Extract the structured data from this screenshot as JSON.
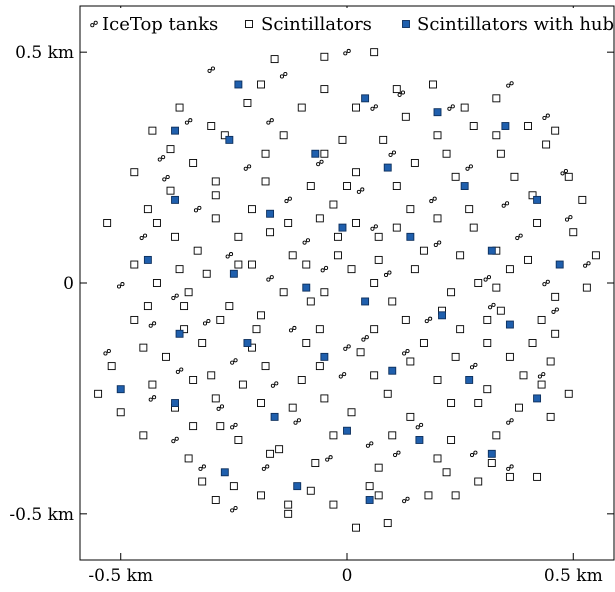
{
  "chart_data": {
    "type": "scatter",
    "title": "",
    "xlabel": "",
    "ylabel": "",
    "xlim": [
      -0.59,
      0.59
    ],
    "ylim": [
      -0.6,
      0.6
    ],
    "x_ticks": [
      {
        "value": -0.5,
        "label": "-0.5 km"
      },
      {
        "value": 0,
        "label": "0"
      },
      {
        "value": 0.5,
        "label": "0.5 km"
      }
    ],
    "y_ticks": [
      {
        "value": 0.5,
        "label": "0.5 km"
      },
      {
        "value": 0,
        "label": "0"
      },
      {
        "value": -0.5,
        "label": "-0.5 km"
      }
    ],
    "grid": false,
    "legend_position": "top",
    "colors": {
      "hub": "#1f5fad",
      "edge": "#000000",
      "open": "#ffffff"
    },
    "series": [
      {
        "name": "IceTop tanks",
        "marker": "double-circle",
        "points": [
          [
            -0.3,
            0.462
          ],
          [
            -0.14,
            0.45
          ],
          [
            0.0,
            0.5
          ],
          [
            0.12,
            0.41
          ],
          [
            0.36,
            0.43
          ],
          [
            -0.35,
            0.35
          ],
          [
            -0.17,
            0.35
          ],
          [
            0.06,
            0.38
          ],
          [
            0.23,
            0.38
          ],
          [
            0.44,
            0.36
          ],
          [
            -0.41,
            0.27
          ],
          [
            -0.22,
            0.25
          ],
          [
            -0.06,
            0.26
          ],
          [
            0.1,
            0.28
          ],
          [
            0.27,
            0.25
          ],
          [
            0.48,
            0.24
          ],
          [
            -0.4,
            0.227
          ],
          [
            -0.33,
            0.16
          ],
          [
            -0.13,
            0.18
          ],
          [
            0.03,
            0.2
          ],
          [
            0.19,
            0.18
          ],
          [
            0.35,
            0.17
          ],
          [
            -0.45,
            0.1
          ],
          [
            -0.26,
            0.06
          ],
          [
            -0.09,
            0.09
          ],
          [
            0.06,
            0.12
          ],
          [
            0.2,
            0.085
          ],
          [
            0.38,
            0.1
          ],
          [
            0.49,
            0.14
          ],
          [
            -0.5,
            -0.005
          ],
          [
            -0.38,
            -0.03
          ],
          [
            -0.17,
            0.01
          ],
          [
            -0.05,
            0.03
          ],
          [
            0.09,
            0.02
          ],
          [
            0.31,
            0.01
          ],
          [
            0.44,
            0.0
          ],
          [
            0.53,
            0.04
          ],
          [
            -0.43,
            -0.09
          ],
          [
            -0.31,
            -0.085
          ],
          [
            -0.12,
            -0.1
          ],
          [
            0.04,
            -0.12
          ],
          [
            0.18,
            -0.08
          ],
          [
            0.32,
            -0.05
          ],
          [
            0.46,
            -0.06
          ],
          [
            -0.53,
            -0.15
          ],
          [
            -0.37,
            -0.19
          ],
          [
            -0.25,
            -0.17
          ],
          [
            0.0,
            -0.14
          ],
          [
            0.13,
            -0.15
          ],
          [
            0.28,
            -0.18
          ],
          [
            0.43,
            -0.2
          ],
          [
            -0.43,
            -0.25
          ],
          [
            -0.28,
            -0.27
          ],
          [
            -0.16,
            -0.22
          ],
          [
            -0.01,
            -0.2
          ],
          [
            0.16,
            -0.31
          ],
          [
            0.36,
            -0.3
          ],
          [
            -0.38,
            -0.34
          ],
          [
            -0.25,
            -0.31
          ],
          [
            -0.11,
            -0.3
          ],
          [
            0.05,
            -0.35
          ],
          [
            0.11,
            -0.37
          ],
          [
            0.28,
            -0.37
          ],
          [
            -0.32,
            -0.4
          ],
          [
            -0.18,
            -0.4
          ],
          [
            -0.04,
            -0.38
          ],
          [
            0.13,
            -0.47
          ],
          [
            0.36,
            -0.4
          ],
          [
            -0.25,
            -0.49
          ]
        ]
      },
      {
        "name": "Scintillators",
        "marker": "open-square",
        "points": [
          [
            -0.16,
            0.485
          ],
          [
            -0.05,
            0.49
          ],
          [
            0.06,
            0.5
          ],
          [
            0.19,
            0.43
          ],
          [
            -0.37,
            0.38
          ],
          [
            -0.19,
            0.43
          ],
          [
            -0.05,
            0.42
          ],
          [
            0.11,
            0.42
          ],
          [
            0.26,
            0.38
          ],
          [
            0.33,
            0.4
          ],
          [
            -0.43,
            0.33
          ],
          [
            -0.3,
            0.34
          ],
          [
            -0.22,
            0.39
          ],
          [
            -0.1,
            0.38
          ],
          [
            0.02,
            0.38
          ],
          [
            0.13,
            0.36
          ],
          [
            0.28,
            0.34
          ],
          [
            0.4,
            0.34
          ],
          [
            -0.39,
            0.29
          ],
          [
            -0.27,
            0.32
          ],
          [
            -0.14,
            0.32
          ],
          [
            -0.01,
            0.31
          ],
          [
            0.08,
            0.31
          ],
          [
            0.2,
            0.32
          ],
          [
            0.33,
            0.32
          ],
          [
            0.46,
            0.33
          ],
          [
            -0.47,
            0.24
          ],
          [
            -0.34,
            0.26
          ],
          [
            -0.18,
            0.28
          ],
          [
            -0.05,
            0.28
          ],
          [
            0.02,
            0.24
          ],
          [
            0.15,
            0.26
          ],
          [
            0.22,
            0.28
          ],
          [
            0.34,
            0.28
          ],
          [
            0.44,
            0.3
          ],
          [
            -0.39,
            0.2
          ],
          [
            -0.29,
            0.22
          ],
          [
            -0.18,
            0.22
          ],
          [
            -0.08,
            0.21
          ],
          [
            0.0,
            0.21
          ],
          [
            0.11,
            0.21
          ],
          [
            0.24,
            0.23
          ],
          [
            0.37,
            0.23
          ],
          [
            0.49,
            0.23
          ],
          [
            -0.44,
            0.16
          ],
          [
            -0.29,
            0.19
          ],
          [
            -0.21,
            0.16
          ],
          [
            -0.03,
            0.17
          ],
          [
            0.14,
            0.16
          ],
          [
            0.27,
            0.16
          ],
          [
            0.41,
            0.19
          ],
          [
            0.52,
            0.18
          ],
          [
            -0.38,
            0.1
          ],
          [
            -0.29,
            0.14
          ],
          [
            -0.17,
            0.11
          ],
          [
            -0.06,
            0.14
          ],
          [
            0.02,
            0.13
          ],
          [
            0.11,
            0.12
          ],
          [
            0.2,
            0.14
          ],
          [
            0.28,
            0.12
          ],
          [
            0.42,
            0.13
          ],
          [
            -0.53,
            0.13
          ],
          [
            -0.42,
            0.13
          ],
          [
            -0.33,
            0.07
          ],
          [
            -0.24,
            0.1
          ],
          [
            -0.13,
            0.13
          ],
          [
            -0.02,
            0.1
          ],
          [
            0.07,
            0.1
          ],
          [
            0.17,
            0.07
          ],
          [
            0.33,
            0.07
          ],
          [
            0.5,
            0.11
          ],
          [
            -0.47,
            0.04
          ],
          [
            -0.37,
            0.03
          ],
          [
            -0.24,
            0.04
          ],
          [
            -0.12,
            0.06
          ],
          [
            -0.02,
            0.06
          ],
          [
            0.07,
            0.05
          ],
          [
            0.25,
            0.06
          ],
          [
            0.4,
            0.05
          ],
          [
            0.55,
            0.06
          ],
          [
            -0.42,
            0.0
          ],
          [
            -0.31,
            0.02
          ],
          [
            -0.21,
            0.04
          ],
          [
            -0.09,
            0.04
          ],
          [
            0.01,
            0.03
          ],
          [
            0.15,
            0.03
          ],
          [
            0.29,
            0.0
          ],
          [
            0.36,
            0.03
          ],
          [
            0.46,
            -0.03
          ],
          [
            -0.44,
            -0.05
          ],
          [
            -0.35,
            -0.02
          ],
          [
            -0.26,
            -0.05
          ],
          [
            -0.14,
            -0.02
          ],
          [
            -0.05,
            -0.02
          ],
          [
            0.06,
            0.0
          ],
          [
            0.23,
            -0.02
          ],
          [
            0.33,
            -0.01
          ],
          [
            0.53,
            -0.01
          ],
          [
            -0.47,
            -0.08
          ],
          [
            -0.36,
            -0.05
          ],
          [
            -0.28,
            -0.08
          ],
          [
            -0.19,
            -0.07
          ],
          [
            -0.08,
            -0.04
          ],
          [
            0.1,
            -0.04
          ],
          [
            0.21,
            -0.06
          ],
          [
            0.34,
            -0.06
          ],
          [
            0.43,
            -0.08
          ],
          [
            -0.36,
            -0.1
          ],
          [
            -0.2,
            -0.1
          ],
          [
            -0.06,
            -0.1
          ],
          [
            0.13,
            -0.08
          ],
          [
            0.25,
            -0.1
          ],
          [
            0.31,
            -0.08
          ],
          [
            0.46,
            -0.11
          ],
          [
            -0.45,
            -0.14
          ],
          [
            -0.32,
            -0.13
          ],
          [
            -0.21,
            -0.14
          ],
          [
            -0.09,
            -0.13
          ],
          [
            0.06,
            -0.1
          ],
          [
            0.17,
            -0.13
          ],
          [
            0.31,
            -0.13
          ],
          [
            0.41,
            -0.13
          ],
          [
            -0.52,
            -0.18
          ],
          [
            -0.4,
            -0.16
          ],
          [
            -0.3,
            -0.2
          ],
          [
            -0.18,
            -0.18
          ],
          [
            -0.06,
            -0.18
          ],
          [
            0.03,
            -0.15
          ],
          [
            0.14,
            -0.17
          ],
          [
            0.24,
            -0.16
          ],
          [
            0.36,
            -0.16
          ],
          [
            0.45,
            -0.17
          ],
          [
            -0.55,
            -0.24
          ],
          [
            -0.43,
            -0.22
          ],
          [
            -0.34,
            -0.21
          ],
          [
            -0.23,
            -0.22
          ],
          [
            -0.1,
            -0.21
          ],
          [
            0.06,
            -0.2
          ],
          [
            0.2,
            -0.21
          ],
          [
            0.31,
            -0.23
          ],
          [
            0.39,
            -0.2
          ],
          [
            -0.5,
            -0.28
          ],
          [
            -0.38,
            -0.27
          ],
          [
            -0.29,
            -0.25
          ],
          [
            -0.19,
            -0.26
          ],
          [
            -0.05,
            -0.25
          ],
          [
            0.09,
            -0.24
          ],
          [
            0.23,
            -0.26
          ],
          [
            0.43,
            -0.22
          ],
          [
            0.49,
            -0.24
          ],
          [
            -0.45,
            -0.33
          ],
          [
            -0.34,
            -0.31
          ],
          [
            -0.28,
            -0.31
          ],
          [
            -0.12,
            -0.27
          ],
          [
            0.01,
            -0.28
          ],
          [
            0.14,
            -0.29
          ],
          [
            0.29,
            -0.26
          ],
          [
            0.38,
            -0.27
          ],
          [
            -0.35,
            -0.38
          ],
          [
            -0.24,
            -0.34
          ],
          [
            -0.15,
            -0.36
          ],
          [
            -0.03,
            -0.33
          ],
          [
            0.1,
            -0.33
          ],
          [
            0.23,
            -0.34
          ],
          [
            0.33,
            -0.33
          ],
          [
            0.45,
            -0.29
          ],
          [
            -0.32,
            -0.43
          ],
          [
            -0.17,
            -0.37
          ],
          [
            -0.07,
            -0.39
          ],
          [
            0.07,
            -0.4
          ],
          [
            0.2,
            -0.38
          ],
          [
            0.32,
            -0.39
          ],
          [
            -0.25,
            -0.44
          ],
          [
            -0.08,
            -0.45
          ],
          [
            0.05,
            -0.44
          ],
          [
            0.22,
            -0.41
          ],
          [
            0.36,
            -0.42
          ],
          [
            -0.29,
            -0.47
          ],
          [
            -0.19,
            -0.46
          ],
          [
            -0.03,
            -0.48
          ],
          [
            0.07,
            -0.46
          ],
          [
            0.24,
            -0.46
          ],
          [
            0.29,
            -0.43
          ],
          [
            0.42,
            -0.42
          ],
          [
            -0.13,
            -0.5
          ],
          [
            0.02,
            -0.53
          ],
          [
            0.18,
            -0.46
          ],
          [
            0.09,
            -0.52
          ],
          [
            -0.13,
            -0.48
          ]
        ]
      },
      {
        "name": "Scintillators with hub",
        "marker": "filled-square",
        "points": [
          [
            -0.24,
            0.43
          ],
          [
            0.04,
            0.4
          ],
          [
            0.2,
            0.37
          ],
          [
            -0.38,
            0.33
          ],
          [
            0.35,
            0.34
          ],
          [
            -0.26,
            0.31
          ],
          [
            -0.07,
            0.28
          ],
          [
            0.09,
            0.25
          ],
          [
            0.26,
            0.21
          ],
          [
            -0.38,
            0.18
          ],
          [
            0.42,
            0.18
          ],
          [
            -0.17,
            0.15
          ],
          [
            -0.01,
            0.12
          ],
          [
            0.14,
            0.1
          ],
          [
            -0.44,
            0.05
          ],
          [
            0.32,
            0.07
          ],
          [
            -0.25,
            0.02
          ],
          [
            0.47,
            0.04
          ],
          [
            -0.09,
            -0.01
          ],
          [
            0.04,
            -0.04
          ],
          [
            0.21,
            -0.07
          ],
          [
            -0.37,
            -0.11
          ],
          [
            0.36,
            -0.09
          ],
          [
            -0.22,
            -0.13
          ],
          [
            -0.05,
            -0.16
          ],
          [
            0.1,
            -0.19
          ],
          [
            0.27,
            -0.21
          ],
          [
            -0.5,
            -0.23
          ],
          [
            -0.38,
            -0.26
          ],
          [
            0.42,
            -0.25
          ],
          [
            -0.16,
            -0.29
          ],
          [
            0.0,
            -0.32
          ],
          [
            0.16,
            -0.34
          ],
          [
            -0.27,
            -0.41
          ],
          [
            0.32,
            -0.37
          ],
          [
            -0.11,
            -0.44
          ],
          [
            0.05,
            -0.47
          ]
        ]
      }
    ]
  }
}
